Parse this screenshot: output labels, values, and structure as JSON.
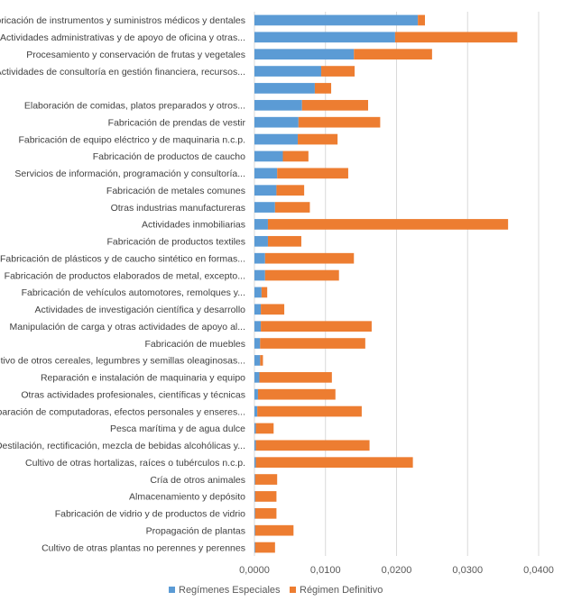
{
  "chart_data": {
    "type": "bar",
    "orientation": "horizontal",
    "stacked": true,
    "title": "",
    "xlabel": "",
    "ylabel": "",
    "xlim": [
      0,
      0.04
    ],
    "x_ticks": [
      "0,0000",
      "0,0100",
      "0,0200",
      "0,0300",
      "0,0400"
    ],
    "x_tick_values": [
      0,
      0.01,
      0.02,
      0.03,
      0.04
    ],
    "grid": "vertical",
    "legend_position": "bottom",
    "categories": [
      "Fabricación de instrumentos y suministros médicos y dentales",
      "Actividades administrativas y de apoyo de oficina y otras...",
      "Procesamiento y conservación de frutas y vegetales",
      "Actividades de consultoría en gestión financiera, recursos...",
      "",
      "Elaboración de comidas, platos preparados y otros...",
      "Fabricación de prendas de vestir",
      "Fabricación de equipo eléctrico y de maquinaria n.c.p.",
      "Fabricación de productos de caucho",
      "Servicios de información, programación y consultoría...",
      "Fabricación de metales comunes",
      "Otras industrias manufactureras",
      "Actividades inmobiliarias",
      "Fabricación de productos textiles",
      "Fabricación de plásticos y de caucho sintético en formas...",
      "Fabricación de productos elaborados de metal, excepto...",
      "Fabricación de vehículos automotores, remolques y...",
      "Actividades de investigación científica y desarrollo",
      "Manipulación de carga y otras actividades de apoyo al...",
      "Fabricación de muebles",
      "Cultivo de otros cereales, legumbres y semillas oleaginosas...",
      "Reparación e instalación de maquinaria y equipo",
      "Otras actividades profesionales, científicas y técnicas",
      "Reparación de computadoras, efectos personales y enseres...",
      "Pesca marítima y de agua dulce",
      "Destilación, rectificación, mezcla de bebidas alcohólicas y...",
      "Cultivo de otras hortalizas, raíces o tubérculos n.c.p.",
      "Cría de otros animales",
      "Almacenamiento y depósito",
      "Fabricación de vidrio y de productos de vidrio",
      "Propagación de plantas",
      "Cultivo de otras plantas no perennes y perennes"
    ],
    "series": [
      {
        "name": "Regímenes Especiales",
        "color": "#5B9BD5",
        "values": [
          0.023,
          0.0198,
          0.014,
          0.0094,
          0.0085,
          0.0067,
          0.0062,
          0.0061,
          0.004,
          0.0032,
          0.0031,
          0.0029,
          0.0019,
          0.0019,
          0.0015,
          0.0015,
          0.001,
          0.0009,
          0.0009,
          0.0008,
          0.0008,
          0.0007,
          0.0005,
          0.0004,
          0.0002,
          0.0002,
          0.0002,
          0.0001,
          0.0001,
          0.0001,
          0.0001,
          0.0001
        ]
      },
      {
        "name": "Régimen Definitivo",
        "color": "#ED7D31",
        "values": [
          0.001,
          0.0172,
          0.011,
          0.0047,
          0.0023,
          0.0093,
          0.0115,
          0.0056,
          0.0036,
          0.01,
          0.0039,
          0.0049,
          0.0338,
          0.0047,
          0.0125,
          0.0104,
          0.0008,
          0.0033,
          0.0156,
          0.0148,
          0.0004,
          0.0102,
          0.0109,
          0.0147,
          0.0025,
          0.016,
          0.0221,
          0.0031,
          0.003,
          0.003,
          0.0054,
          0.0028
        ]
      }
    ]
  }
}
